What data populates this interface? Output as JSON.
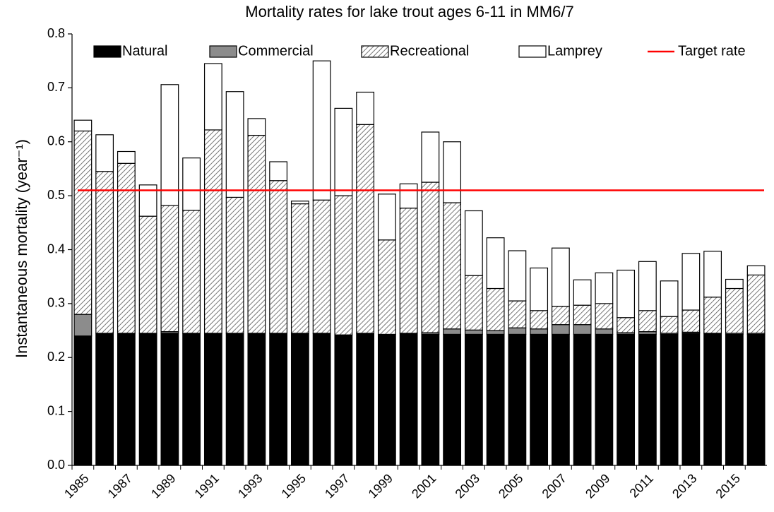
{
  "chart_data": {
    "type": "stacked_bar",
    "title": "Mortality rates for lake trout ages 6-11 in MM6/7",
    "y_label": "Instantaneous mortality (year⁻¹)",
    "categories": [
      "1985",
      null,
      "1987",
      null,
      "1989",
      null,
      "1991",
      null,
      "1993",
      null,
      "1995",
      null,
      "1997",
      null,
      "1999",
      null,
      "2001",
      null,
      "2003",
      null,
      "2005",
      null,
      "2007",
      null,
      "2009",
      null,
      "2011",
      null,
      "2013",
      null,
      "2015",
      null
    ],
    "series": [
      {
        "name": "Natural",
        "color": "#000000",
        "values": [
          0.24,
          0.245,
          0.245,
          0.245,
          0.245,
          0.245,
          0.245,
          0.245,
          0.245,
          0.245,
          0.245,
          0.245,
          0.242,
          0.245,
          0.243,
          0.245,
          0.243,
          0.243,
          0.243,
          0.243,
          0.243,
          0.243,
          0.243,
          0.243,
          0.243,
          0.243,
          0.243,
          0.243,
          0.245,
          0.245,
          0.243,
          0.243
        ]
      },
      {
        "name": "Commercial",
        "color": "#8c8c8c",
        "values": [
          0.04,
          0,
          0,
          0,
          0.003,
          0,
          0,
          0,
          0,
          0,
          0,
          0,
          0,
          0,
          0,
          0,
          0.003,
          0.01,
          0.008,
          0.007,
          0.012,
          0.01,
          0.018,
          0.018,
          0.01,
          0.003,
          0.005,
          0.002,
          0.002,
          0,
          0.002,
          0.002
        ]
      },
      {
        "name": "Recreational",
        "color": "#d0d0d0",
        "pattern": "hatch",
        "values": [
          0.34,
          0.3,
          0.315,
          0.217,
          0.234,
          0.228,
          0.377,
          0.252,
          0.367,
          0.283,
          0.24,
          0.247,
          0.258,
          0.387,
          0.175,
          0.232,
          0.279,
          0.234,
          0.101,
          0.078,
          0.05,
          0.034,
          0.034,
          0.036,
          0.047,
          0.028,
          0.039,
          0.031,
          0.041,
          0.067,
          0.083,
          0.108
        ]
      },
      {
        "name": "Lamprey",
        "color": "#ffffff",
        "values": [
          0.02,
          0.068,
          0.022,
          0.058,
          0.224,
          0.097,
          0.123,
          0.196,
          0.031,
          0.035,
          0.005,
          0.258,
          0.162,
          0.06,
          0.085,
          0.045,
          0.093,
          0.113,
          0.12,
          0.094,
          0.093,
          0.079,
          0.108,
          0.047,
          0.057,
          0.088,
          0.091,
          0.066,
          0.105,
          0.085,
          0.017,
          0.017
        ]
      }
    ],
    "target": {
      "name": "Target rate",
      "value": 0.51,
      "color": "#ff0000"
    },
    "ylim": [
      0,
      0.8
    ],
    "yticks": [
      {
        "value": 0,
        "label": "0.0"
      },
      0.1,
      0.2,
      0.3,
      0.4,
      0.5,
      0.6,
      0.7,
      0.8
    ],
    "grid": false,
    "legend": "top"
  }
}
